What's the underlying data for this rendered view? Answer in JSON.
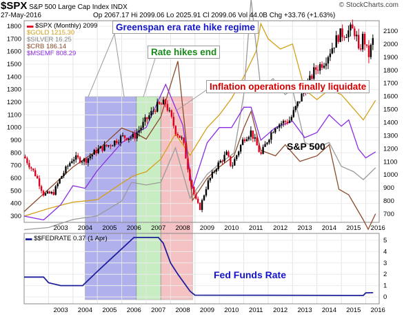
{
  "header": {
    "symbol": "$SPX",
    "title": "S&P 500 Large Cap Index INDX",
    "date": "27-May-2016",
    "quote": "Op 2067.17  Hi 2099.06  Lo 2025.91  Cl 2099.06  Vol 44.0B  Chg +33.76 (+1.63%)",
    "credit": "© StockCharts.com"
  },
  "legend": {
    "spx": "$SPX (Monthly) 2099",
    "gold": "$GOLD 1215.30",
    "silver": "$SILVER 16.25",
    "crb": "$CRB 186.14",
    "msemf": "$MSEMF 808.29",
    "fed": "$$FEDRATE 0.37 (1 Apr)"
  },
  "callouts": {
    "greenspan": "Greenspan era rate hike regime",
    "hikes_end": "Rate hikes end",
    "inflation": "Inflation operations finally liquidate"
  },
  "labels": {
    "sp500": "S&P 500",
    "fed_funds": "Fed Funds Rate"
  },
  "colors": {
    "up": "#000000",
    "down": "#e0001b",
    "gold": "#d4a017",
    "silver": "#9a9a9a",
    "crb": "#8b4a2a",
    "msemf": "#8a2be2",
    "fed": "#1f1f9a",
    "band_blue": "#7070e0",
    "band_green": "#a6e29a",
    "band_red": "#ee9a9a",
    "callout_blue": "#1414c8",
    "callout_green": "#1a8a1a",
    "callout_red": "#d40000"
  },
  "chart_data": [
    {
      "type": "line",
      "title": "$SPX (Monthly)",
      "x_ticks": [
        "2003",
        "2004",
        "2005",
        "2006",
        "2007",
        "2008",
        "2009",
        "2010",
        "2011",
        "2012",
        "2013",
        "2014",
        "2015",
        "2016"
      ],
      "left_axis": [
        300,
        400,
        500,
        600,
        700,
        800,
        900,
        1000,
        1100,
        1200,
        1300,
        1400,
        1500,
        1600,
        1700,
        1800
      ],
      "right_axis": [
        700,
        800,
        900,
        1000,
        1100,
        1200,
        1300,
        1400,
        1500,
        1600,
        1700,
        1800,
        1900,
        2000,
        2100
      ],
      "shaded_regions": [
        {
          "from": 2004.5,
          "to": 2006.6,
          "color": "blue"
        },
        {
          "from": 2006.6,
          "to": 2007.6,
          "color": "green"
        },
        {
          "from": 2007.6,
          "to": 2008.9,
          "color": "red"
        }
      ],
      "spx": {
        "name": "$SPX (Monthly) 2099",
        "x": [
          2002.0,
          2002.5,
          2002.8,
          2003.2,
          2003.5,
          2004.0,
          2004.5,
          2005.0,
          2005.5,
          2006.0,
          2006.5,
          2007.0,
          2007.4,
          2007.8,
          2008.2,
          2008.5,
          2008.8,
          2009.0,
          2009.2,
          2009.5,
          2009.9,
          2010.3,
          2010.5,
          2011.0,
          2011.3,
          2011.7,
          2012.0,
          2012.3,
          2012.6,
          2012.9,
          2013.3,
          2013.6,
          2013.9,
          2014.3,
          2014.6,
          2014.9,
          2015.2,
          2015.4,
          2015.6,
          2015.7,
          2015.9,
          2016.1,
          2016.4
        ],
        "values": [
          1140,
          990,
          850,
          860,
          980,
          1130,
          1110,
          1190,
          1230,
          1290,
          1290,
          1420,
          1520,
          1550,
          1340,
          1260,
          970,
          820,
          740,
          930,
          1070,
          1160,
          1060,
          1280,
          1330,
          1150,
          1280,
          1380,
          1400,
          1420,
          1580,
          1680,
          1800,
          1870,
          1970,
          2070,
          2090,
          2110,
          2090,
          1920,
          2070,
          1900,
          2099
        ]
      },
      "series": [
        {
          "name": "$GOLD 1215.30",
          "x": [
            2002.0,
            2003.0,
            2004.0,
            2005.0,
            2006.0,
            2006.5,
            2007.0,
            2007.6,
            2008.2,
            2008.8,
            2009.5,
            2010.0,
            2010.5,
            2011.0,
            2011.5,
            2011.7,
            2012.0,
            2012.5,
            2013.0,
            2013.5,
            2014.0,
            2014.5,
            2015.0,
            2015.5,
            2015.9,
            2016.4
          ],
          "values": [
            300,
            360,
            410,
            430,
            560,
            620,
            650,
            750,
            950,
            780,
            1000,
            1100,
            1230,
            1400,
            1600,
            1820,
            1700,
            1620,
            1660,
            1300,
            1220,
            1300,
            1260,
            1150,
            1060,
            1215
          ]
        },
        {
          "name": "$SILVER 16.25",
          "x": [
            2002.0,
            2003.0,
            2004.0,
            2005.0,
            2006.0,
            2006.4,
            2007.0,
            2007.6,
            2008.2,
            2008.8,
            2009.5,
            2010.0,
            2010.6,
            2011.0,
            2011.3,
            2011.7,
            2012.2,
            2012.7,
            2013.0,
            2013.5,
            2014.0,
            2014.5,
            2015.0,
            2015.5,
            2015.9,
            2016.4
          ],
          "values": [
            4.6,
            5.0,
            6.5,
            7.2,
            10.0,
            13.5,
            13.0,
            13.5,
            20.0,
            10.5,
            15.0,
            17.0,
            19.0,
            30.0,
            48.0,
            31.0,
            33.0,
            30.0,
            31.0,
            21.0,
            20.0,
            21.0,
            16.5,
            15.5,
            14.0,
            16.25
          ]
        },
        {
          "name": "$CRB 186.14",
          "x": [
            2002.0,
            2003.0,
            2004.0,
            2005.0,
            2006.0,
            2006.6,
            2007.0,
            2007.6,
            2008.3,
            2008.9,
            2009.5,
            2010.0,
            2010.6,
            2011.0,
            2011.3,
            2011.7,
            2012.3,
            2012.7,
            2013.3,
            2014.0,
            2014.5,
            2014.9,
            2015.3,
            2015.9,
            2016.1,
            2016.4
          ],
          "values": [
            190,
            230,
            270,
            300,
            340,
            330,
            320,
            360,
            460,
            210,
            250,
            270,
            290,
            340,
            370,
            300,
            290,
            310,
            280,
            290,
            310,
            230,
            220,
            175,
            158,
            186
          ]
        },
        {
          "name": "$MSEMF 808.29",
          "x": [
            2002.0,
            2002.8,
            2003.5,
            2004.0,
            2004.5,
            2005.0,
            2006.0,
            2006.5,
            2007.0,
            2007.8,
            2008.5,
            2008.9,
            2009.5,
            2010.0,
            2010.5,
            2011.0,
            2011.3,
            2011.7,
            2012.3,
            2013.0,
            2013.5,
            2014.0,
            2014.5,
            2015.0,
            2015.3,
            2015.7,
            2016.0,
            2016.4
          ],
          "values": [
            300,
            270,
            390,
            540,
            520,
            660,
            880,
            950,
            1000,
            1340,
            1020,
            520,
            880,
            1000,
            1000,
            1160,
            1160,
            900,
            1000,
            1050,
            920,
            960,
            1100,
            1010,
            1060,
            830,
            760,
            808
          ]
        }
      ]
    },
    {
      "type": "line",
      "title": "$$FEDRATE",
      "y_axis": [
        0,
        1,
        2,
        3,
        4,
        5
      ],
      "series": [
        {
          "name": "$$FEDRATE 0.37 (1 Apr)",
          "x": [
            2002.0,
            2002.8,
            2003.0,
            2003.5,
            2004.4,
            2005.0,
            2005.5,
            2006.0,
            2006.5,
            2007.5,
            2007.7,
            2008.0,
            2008.3,
            2008.8,
            2009.0,
            2015.9,
            2016.0,
            2016.3
          ],
          "values": [
            1.75,
            1.75,
            1.25,
            1.0,
            1.0,
            2.25,
            3.25,
            4.25,
            5.25,
            5.25,
            4.75,
            3.0,
            2.0,
            0.5,
            0.15,
            0.13,
            0.36,
            0.37
          ]
        }
      ]
    }
  ]
}
